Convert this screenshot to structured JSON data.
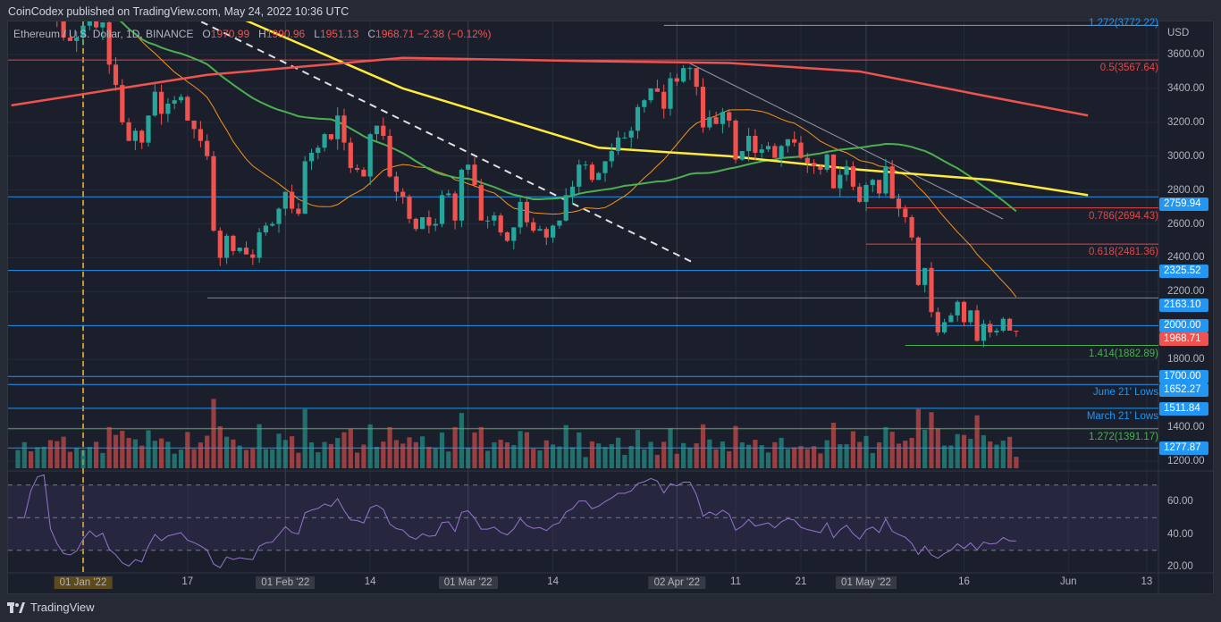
{
  "publisher_line": "CoinCodex published on TradingView.com, May 24, 2022 10:36 UTC",
  "legend": {
    "symbol": "Ethereum / U.S. Dollar, 1D, BINANCE",
    "o_label": "O",
    "o": "1970.99",
    "h_label": "H",
    "h": "1990.96",
    "l_label": "L",
    "l": "1951.13",
    "c_label": "C",
    "c": "1968.71",
    "change": "−2.38 (−0.12%)"
  },
  "footer": {
    "brand": "TradingView"
  },
  "colors": {
    "up": "#26a69a",
    "down": "#ef5350",
    "ma20": "#f7931a",
    "ma50": "#4caf50",
    "ma100": "#ffeb3b",
    "ma200": "#ef5350",
    "level": "#2196f3",
    "rsi": "#9575cd"
  },
  "chart_data": {
    "type": "candlestick",
    "title": "Ethereum / U.S. Dollar, 1D, BINANCE",
    "currency": "USD",
    "start_date": "2021-12-21",
    "closes": [
      3950,
      3980,
      4050,
      4000,
      4050,
      4060,
      3900,
      3800,
      3700,
      3680,
      3700,
      3770,
      3830,
      3760,
      3790,
      3540,
      3420,
      3200,
      3090,
      3150,
      3080,
      3240,
      3380,
      3250,
      3310,
      3330,
      3350,
      3210,
      3160,
      3090,
      3000,
      2560,
      2400,
      2530,
      2440,
      2460,
      2420,
      2400,
      2550,
      2590,
      2600,
      2690,
      2790,
      2690,
      2660,
      2970,
      3020,
      3050,
      3130,
      3100,
      3240,
      3080,
      2930,
      2920,
      2880,
      3130,
      3180,
      3120,
      2880,
      2790,
      2760,
      2630,
      2570,
      2640,
      2590,
      2600,
      2770,
      2780,
      2620,
      2920,
      2950,
      2830,
      2620,
      2620,
      2650,
      2550,
      2500,
      2580,
      2730,
      2610,
      2560,
      2570,
      2520,
      2590,
      2620,
      2770,
      2820,
      2950,
      2950,
      2860,
      2900,
      2970,
      3030,
      3110,
      3110,
      3150,
      3290,
      3330,
      3400,
      3380,
      3280,
      3460,
      3440,
      3520,
      3520,
      3410,
      3170,
      3230,
      3190,
      3260,
      3210,
      2980,
      3030,
      3120,
      3020,
      3040,
      3060,
      2990,
      3060,
      3100,
      3080,
      2990,
      2960,
      2940,
      2920,
      3010,
      2810,
      2890,
      2940,
      2820,
      2730,
      2830,
      2860,
      2780,
      2940,
      2750,
      2690,
      2640,
      2520,
      2240,
      2340,
      2080,
      1960,
      2020,
      2060,
      2140,
      2020,
      2090,
      1910,
      2010,
      1960,
      1970,
      2040,
      1970,
      1968.71
    ],
    "ma100_points": [
      [
        0,
        4300
      ],
      [
        30,
        3900
      ],
      [
        60,
        3400
      ],
      [
        90,
        3050
      ],
      [
        110,
        3000
      ],
      [
        130,
        2920
      ],
      [
        150,
        2860
      ],
      [
        165,
        2770
      ]
    ],
    "ma200_points": [
      [
        0,
        3300
      ],
      [
        30,
        3480
      ],
      [
        60,
        3580
      ],
      [
        90,
        3560
      ],
      [
        110,
        3550
      ],
      [
        130,
        3500
      ],
      [
        150,
        3350
      ],
      [
        165,
        3240
      ]
    ],
    "price_axis": {
      "ticks": [
        "3600.00",
        "3400.00",
        "3200.00",
        "3000.00",
        "2800.00",
        "2600.00",
        "2400.00",
        "2200.00",
        "1800.00",
        "1400.00",
        "1200.00"
      ],
      "tick_values": [
        3600,
        3400,
        3200,
        3000,
        2800,
        2600,
        2400,
        2200,
        1800,
        1400,
        1200
      ]
    },
    "rsi_axis": {
      "ticks": [
        "60.00",
        "40.00",
        "20.00"
      ],
      "tick_values": [
        60,
        40,
        20
      ],
      "bands": [
        70,
        50,
        30
      ]
    },
    "price_tags": [
      {
        "label": "2759.94",
        "value": 2759.94
      },
      {
        "label": "2325.52",
        "value": 2325.52
      },
      {
        "label": "2163.10",
        "value": 2163.1
      },
      {
        "label": "2000.00",
        "value": 2000
      },
      {
        "label": "1700.00",
        "value": 1700
      },
      {
        "label": "1652.27",
        "value": 1652.27
      },
      {
        "label": "1511.84",
        "value": 1511.84
      },
      {
        "label": "1277.87",
        "value": 1277.87
      }
    ],
    "last_price": {
      "label": "1968.71",
      "value": 1968.71
    },
    "fib_levels": [
      {
        "label": "1.272(3772.22)",
        "value": 3772.22,
        "color": "#2196f3",
        "from_day": 100
      },
      {
        "label": "0.5(3567.64)",
        "value": 3567.64,
        "color": "#e04848",
        "from_day": -1
      },
      {
        "label": "0.786(2694.43)",
        "value": 2694.43,
        "color": "#e04848",
        "from_day": 131
      },
      {
        "label": "0.618(2481.36)",
        "value": 2481.36,
        "color": "#e04848",
        "from_day": 131
      },
      {
        "label": "1.414(1882.89)",
        "value": 1882.89,
        "color": "#4caf50",
        "from_day": 137
      },
      {
        "label": "1.272(1391.17)",
        "value": 1391.17,
        "color": "#4caf50",
        "from_day": -1
      }
    ],
    "annotations": [
      {
        "label": "June 21' Lows",
        "value": 1652.27
      },
      {
        "label": "March 21' Lows",
        "value": 1511.84
      }
    ],
    "x_axis": [
      {
        "label": "01 Jan '22",
        "day": 11,
        "box": "first"
      },
      {
        "label": "17",
        "day": 27
      },
      {
        "label": "01 Feb '22",
        "day": 42,
        "box": "y"
      },
      {
        "label": "14",
        "day": 55
      },
      {
        "label": "01 Mar '22",
        "day": 70,
        "box": "y"
      },
      {
        "label": "14",
        "day": 83
      },
      {
        "label": "02 Apr '22",
        "day": 102,
        "box": "y"
      },
      {
        "label": "11",
        "day": 111
      },
      {
        "label": "21",
        "day": 121
      },
      {
        "label": "01 May '22",
        "day": 131,
        "box": "y"
      },
      {
        "label": "16",
        "day": 146
      },
      {
        "label": "Jun",
        "day": 162
      },
      {
        "label": "13",
        "day": 174
      }
    ]
  }
}
